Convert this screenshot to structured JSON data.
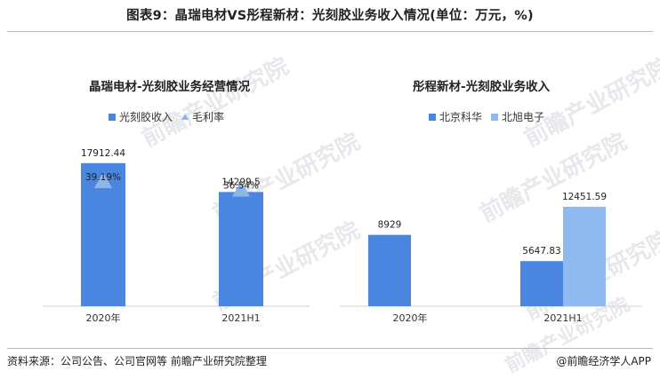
{
  "title": "图表9：晶瑞电材VS彤程新材：光刻胶业务收入情况(单位：万元，%)",
  "watermark": "前瞻产业研究院",
  "source": "资料来源：公司公告、公司官网等 前瞻产业研究院整理",
  "brand": "@前瞻经济学人APP",
  "chart_data": [
    {
      "type": "bar",
      "title": "晶瑞电材-光刻胶业务经营情况",
      "categories": [
        "2020年",
        "2021H1"
      ],
      "series": [
        {
          "name": "光刻胶收入",
          "values": [
            17912.44,
            14299.5
          ],
          "color": "#4a86e0"
        },
        {
          "name": "毛利率",
          "values": [
            39.19,
            36.54
          ],
          "unit": "%",
          "marker": "triangle",
          "color": "#8fb6ea"
        }
      ],
      "value_labels": [
        "17912.44",
        "14299.5"
      ],
      "rate_labels": [
        "39.19%",
        "36.54%"
      ],
      "ylim": [
        0,
        20000
      ]
    },
    {
      "type": "bar",
      "title": "彤程新材-光刻胶业务收入",
      "categories": [
        "2020年",
        "2021H1"
      ],
      "series": [
        {
          "name": "北京科华",
          "values": [
            8929,
            5647.83
          ],
          "color": "#4a86e0"
        },
        {
          "name": "北旭电子",
          "values": [
            null,
            12451.59
          ],
          "color": "#8fb9ef"
        }
      ],
      "value_labels": [
        [
          "8929",
          ""
        ],
        [
          "5647.83",
          "12451.59"
        ]
      ],
      "ylim": [
        0,
        20000
      ]
    }
  ]
}
